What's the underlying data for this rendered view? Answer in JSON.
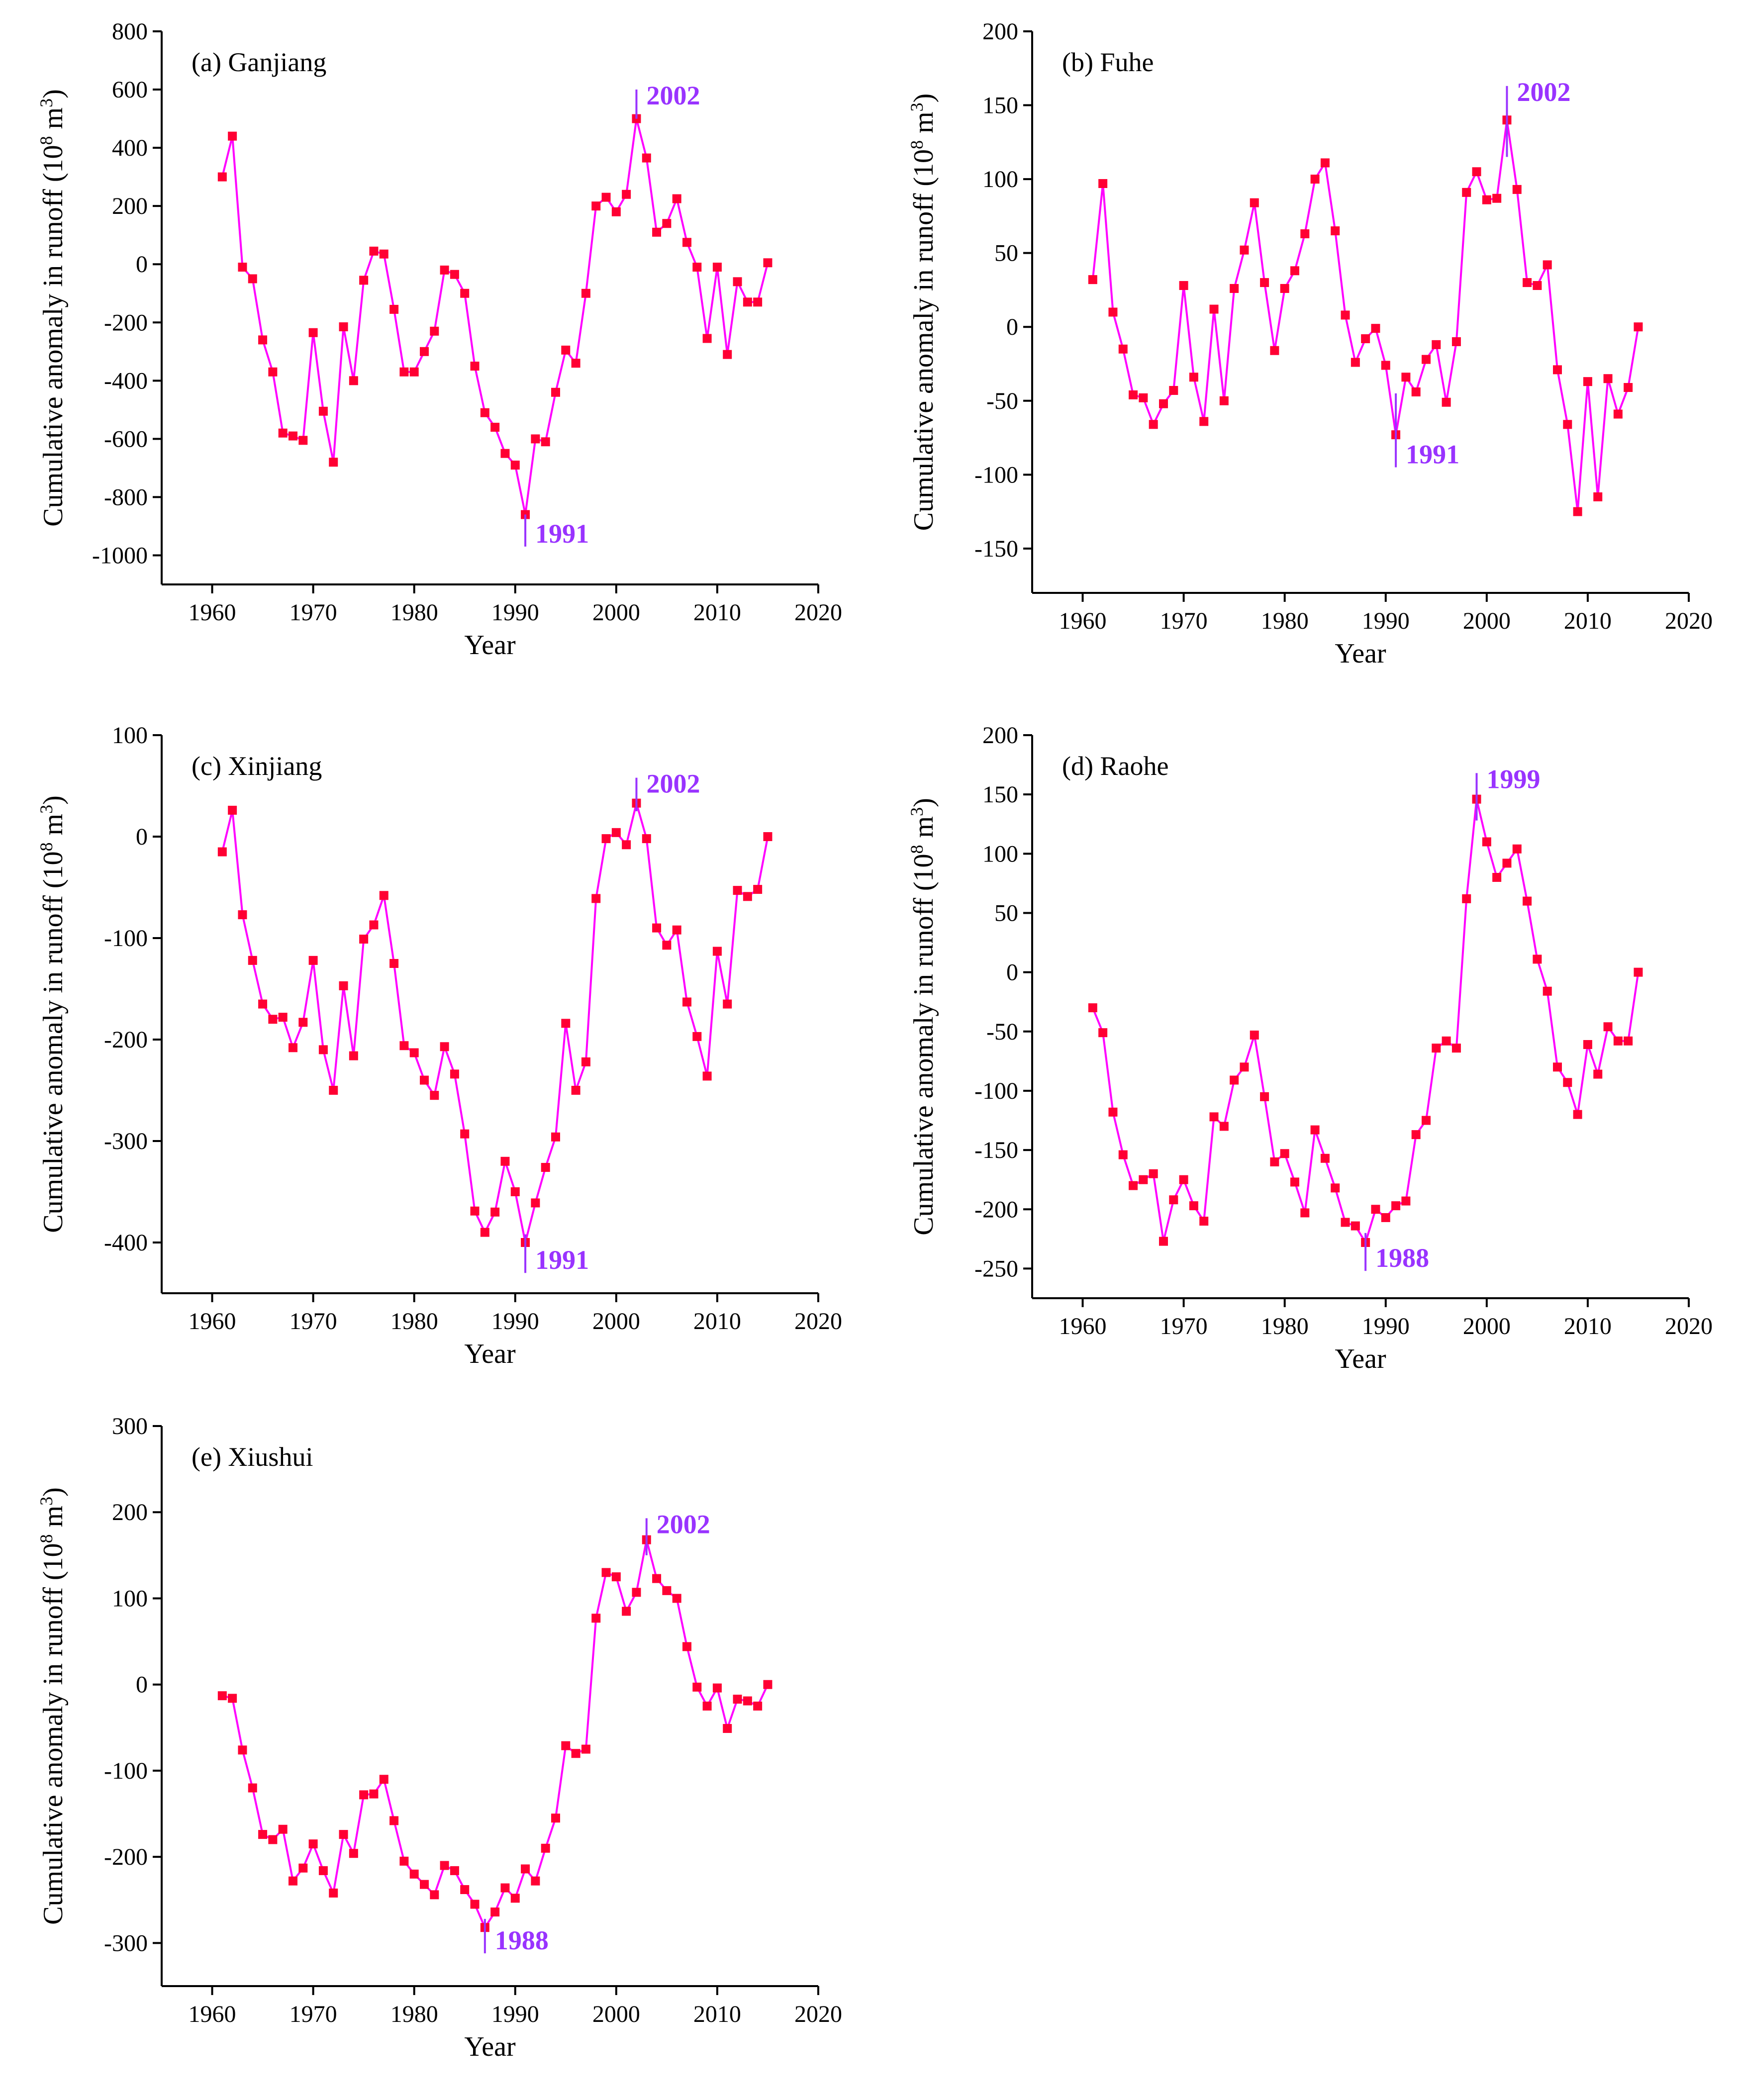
{
  "chart_data": [
    {
      "type": "line",
      "title": "(a) Ganjiang",
      "xlabel": "Year",
      "ylabel": "Cumulative anomaly in runoff (10",
      "ylabel_sup1": "8",
      "ylabel_mid": " m",
      "ylabel_sup2": "3",
      "ylabel_end": ")",
      "xlim": [
        1955,
        2020
      ],
      "ylim": [
        -1100,
        800
      ],
      "xticks": [
        1960,
        1970,
        1980,
        1990,
        2000,
        2010,
        2020
      ],
      "yticks": [
        -1000,
        -800,
        -600,
        -400,
        -200,
        0,
        200,
        400,
        600,
        800
      ],
      "line_color": "#ff00ff",
      "marker_color": "#ff0033",
      "x": [
        1961,
        1962,
        1963,
        1964,
        1965,
        1966,
        1967,
        1968,
        1969,
        1970,
        1971,
        1972,
        1973,
        1974,
        1975,
        1976,
        1977,
        1978,
        1979,
        1980,
        1981,
        1982,
        1983,
        1984,
        1985,
        1986,
        1987,
        1988,
        1989,
        1990,
        1991,
        1992,
        1993,
        1994,
        1995,
        1996,
        1997,
        1998,
        1999,
        2000,
        2001,
        2002,
        2003,
        2004,
        2005,
        2006,
        2007,
        2008,
        2009,
        2010,
        2011,
        2012,
        2013,
        2014,
        2015
      ],
      "values": [
        300,
        440,
        -10,
        -50,
        -260,
        -370,
        -580,
        -590,
        -605,
        -235,
        -505,
        -680,
        -215,
        -400,
        -55,
        45,
        35,
        -155,
        -370,
        -370,
        -300,
        -230,
        -20,
        -35,
        -100,
        -350,
        -510,
        -560,
        -650,
        -690,
        -860,
        -600,
        -610,
        -440,
        -295,
        -340,
        -100,
        200,
        230,
        180,
        240,
        500,
        365,
        110,
        140,
        225,
        75,
        -10,
        -255,
        -10,
        -310,
        -60,
        -130,
        -130,
        5
      ],
      "annotations": [
        {
          "year": 1991,
          "label": "1991",
          "line_from": -860,
          "line_to": -970,
          "pos": "below"
        },
        {
          "year": 2002,
          "label": "2002",
          "line_from": 600,
          "line_to": 500,
          "pos": "above"
        }
      ],
      "annot_color": "#9933ff"
    },
    {
      "type": "line",
      "title": "(b) Fuhe",
      "xlabel": "Year",
      "ylabel": "Cumulative anomaly in runoff (10",
      "ylabel_sup1": "8",
      "ylabel_mid": " m",
      "ylabel_sup2": "3",
      "ylabel_end": ")",
      "xlim": [
        1955,
        2020
      ],
      "ylim": [
        -180,
        200
      ],
      "xticks": [
        1960,
        1970,
        1980,
        1990,
        2000,
        2010,
        2020
      ],
      "yticks": [
        -150,
        -100,
        -50,
        0,
        50,
        100,
        150,
        200
      ],
      "line_color": "#ff00ff",
      "marker_color": "#ff0033",
      "x": [
        1961,
        1962,
        1963,
        1964,
        1965,
        1966,
        1967,
        1968,
        1969,
        1970,
        1971,
        1972,
        1973,
        1974,
        1975,
        1976,
        1977,
        1978,
        1979,
        1980,
        1981,
        1982,
        1983,
        1984,
        1985,
        1986,
        1987,
        1988,
        1989,
        1990,
        1991,
        1992,
        1993,
        1994,
        1995,
        1996,
        1997,
        1998,
        1999,
        2000,
        2001,
        2002,
        2003,
        2004,
        2005,
        2006,
        2007,
        2008,
        2009,
        2010,
        2011,
        2012,
        2013,
        2014,
        2015
      ],
      "values": [
        32,
        97,
        10,
        -15,
        -46,
        -48,
        -66,
        -52,
        -43,
        28,
        -34,
        -64,
        12,
        -50,
        26,
        52,
        84,
        30,
        -16,
        26,
        38,
        63,
        100,
        111,
        65,
        8,
        -24,
        -8,
        -1,
        -26,
        -73,
        -34,
        -44,
        -22,
        -12,
        -51,
        -10,
        91,
        105,
        86,
        87,
        140,
        93,
        30,
        28,
        42,
        -29,
        -66,
        -125,
        -37,
        -115,
        -35,
        -59,
        -41,
        0
      ],
      "annotations": [
        {
          "year": 1991,
          "label": "1991",
          "line_from": -45,
          "line_to": -95,
          "pos": "below"
        },
        {
          "year": 2002,
          "label": "2002",
          "line_from": 163,
          "line_to": 115,
          "pos": "above"
        }
      ],
      "annot_color": "#9933ff"
    },
    {
      "type": "line",
      "title": "(c) Xinjiang",
      "xlabel": "Year",
      "ylabel": "Cumulative anomaly in runoff (10",
      "ylabel_sup1": "8",
      "ylabel_mid": " m",
      "ylabel_sup2": "3",
      "ylabel_end": ")",
      "xlim": [
        1955,
        2020
      ],
      "ylim": [
        -450,
        100
      ],
      "xticks": [
        1960,
        1970,
        1980,
        1990,
        2000,
        2010,
        2020
      ],
      "yticks": [
        -400,
        -300,
        -200,
        -100,
        0,
        100
      ],
      "line_color": "#ff00ff",
      "marker_color": "#ff0033",
      "x": [
        1961,
        1962,
        1963,
        1964,
        1965,
        1966,
        1967,
        1968,
        1969,
        1970,
        1971,
        1972,
        1973,
        1974,
        1975,
        1976,
        1977,
        1978,
        1979,
        1980,
        1981,
        1982,
        1983,
        1984,
        1985,
        1986,
        1987,
        1988,
        1989,
        1990,
        1991,
        1992,
        1993,
        1994,
        1995,
        1996,
        1997,
        1998,
        1999,
        2000,
        2001,
        2002,
        2003,
        2004,
        2005,
        2006,
        2007,
        2008,
        2009,
        2010,
        2011,
        2012,
        2013,
        2014,
        2015
      ],
      "values": [
        -15,
        26,
        -77,
        -122,
        -165,
        -180,
        -178,
        -208,
        -183,
        -122,
        -210,
        -250,
        -147,
        -216,
        -101,
        -87,
        -58,
        -125,
        -206,
        -213,
        -240,
        -255,
        -207,
        -234,
        -293,
        -369,
        -390,
        -370,
        -320,
        -350,
        -400,
        -361,
        -326,
        -296,
        -184,
        -250,
        -222,
        -61,
        -2,
        4,
        -8,
        33,
        -2,
        -90,
        -107,
        -92,
        -163,
        -197,
        -236,
        -113,
        -165,
        -53,
        -59,
        -52,
        0
      ],
      "annotations": [
        {
          "year": 1991,
          "label": "1991",
          "line_from": -392,
          "line_to": -430,
          "pos": "below"
        },
        {
          "year": 2002,
          "label": "2002",
          "line_from": 58,
          "line_to": 25,
          "pos": "above"
        }
      ],
      "annot_color": "#9933ff"
    },
    {
      "type": "line",
      "title": "(d) Raohe",
      "xlabel": "Year",
      "ylabel": "Cumulative anomaly in runoff (10",
      "ylabel_sup1": "8",
      "ylabel_mid": " m",
      "ylabel_sup2": "3",
      "ylabel_end": ")",
      "xlim": [
        1955,
        2020
      ],
      "ylim": [
        -275,
        200
      ],
      "xticks": [
        1960,
        1970,
        1980,
        1990,
        2000,
        2010,
        2020
      ],
      "yticks": [
        -250,
        -200,
        -150,
        -100,
        -50,
        0,
        50,
        100,
        150,
        200
      ],
      "line_color": "#ff00ff",
      "marker_color": "#ff0033",
      "x": [
        1961,
        1962,
        1963,
        1964,
        1965,
        1966,
        1967,
        1968,
        1969,
        1970,
        1971,
        1972,
        1973,
        1974,
        1975,
        1976,
        1977,
        1978,
        1979,
        1980,
        1981,
        1982,
        1983,
        1984,
        1985,
        1986,
        1987,
        1988,
        1989,
        1990,
        1991,
        1992,
        1993,
        1994,
        1995,
        1996,
        1997,
        1998,
        1999,
        2000,
        2001,
        2002,
        2003,
        2004,
        2005,
        2006,
        2007,
        2008,
        2009,
        2010,
        2011,
        2012,
        2013,
        2014,
        2015
      ],
      "values": [
        -30,
        -51,
        -118,
        -154,
        -180,
        -175,
        -170,
        -227,
        -192,
        -175,
        -197,
        -210,
        -122,
        -130,
        -91,
        -80,
        -53,
        -105,
        -160,
        -153,
        -177,
        -203,
        -133,
        -157,
        -182,
        -211,
        -214,
        -228,
        -200,
        -207,
        -197,
        -193,
        -137,
        -125,
        -64,
        -58,
        -64,
        62,
        146,
        110,
        80,
        92,
        104,
        60,
        11,
        -16,
        -80,
        -93,
        -120,
        -61,
        -86,
        -46,
        -58,
        -58,
        0
      ],
      "annotations": [
        {
          "year": 1988,
          "label": "1988",
          "line_from": -220,
          "line_to": -252,
          "pos": "below"
        },
        {
          "year": 1999,
          "label": "1999",
          "line_from": 168,
          "line_to": 128,
          "pos": "above"
        }
      ],
      "annot_color": "#9933ff"
    },
    {
      "type": "line",
      "title": "(e) Xiushui",
      "xlabel": "Year",
      "ylabel": "Cumulative anomaly in runoff (10",
      "ylabel_sup1": "8",
      "ylabel_mid": " m",
      "ylabel_sup2": "3",
      "ylabel_end": ")",
      "xlim": [
        1955,
        2020
      ],
      "ylim": [
        -350,
        300
      ],
      "xticks": [
        1960,
        1970,
        1980,
        1990,
        2000,
        2010,
        2020
      ],
      "yticks": [
        -300,
        -200,
        -100,
        0,
        100,
        200,
        300
      ],
      "line_color": "#ff00ff",
      "marker_color": "#ff0033",
      "x": [
        1961,
        1962,
        1963,
        1964,
        1965,
        1966,
        1967,
        1968,
        1969,
        1970,
        1971,
        1972,
        1973,
        1974,
        1975,
        1976,
        1977,
        1978,
        1979,
        1980,
        1981,
        1982,
        1983,
        1984,
        1985,
        1986,
        1987,
        1988,
        1989,
        1990,
        1991,
        1992,
        1993,
        1994,
        1995,
        1996,
        1997,
        1998,
        1999,
        2000,
        2001,
        2002,
        2003,
        2004,
        2005,
        2006,
        2007,
        2008,
        2009,
        2010,
        2011,
        2012,
        2013,
        2014,
        2015
      ],
      "values": [
        -13,
        -16,
        -76,
        -120,
        -174,
        -180,
        -168,
        -228,
        -213,
        -185,
        -216,
        -242,
        -174,
        -196,
        -128,
        -127,
        -110,
        -158,
        -205,
        -220,
        -232,
        -244,
        -210,
        -216,
        -238,
        -255,
        -282,
        -264,
        -236,
        -248,
        -214,
        -228,
        -190,
        -155,
        -71,
        -80,
        -75,
        77,
        130,
        125,
        85,
        107,
        168,
        123,
        109,
        100,
        44,
        -3,
        -25,
        -4,
        -51,
        -17,
        -19,
        -25,
        0
      ],
      "annotations": [
        {
          "year": 1987,
          "label": "1988",
          "line_from": -272,
          "line_to": -312,
          "pos": "below"
        },
        {
          "year": 2003,
          "label": "2002",
          "line_from": 193,
          "line_to": 150,
          "pos": "above"
        }
      ],
      "annot_color": "#9933ff"
    }
  ]
}
